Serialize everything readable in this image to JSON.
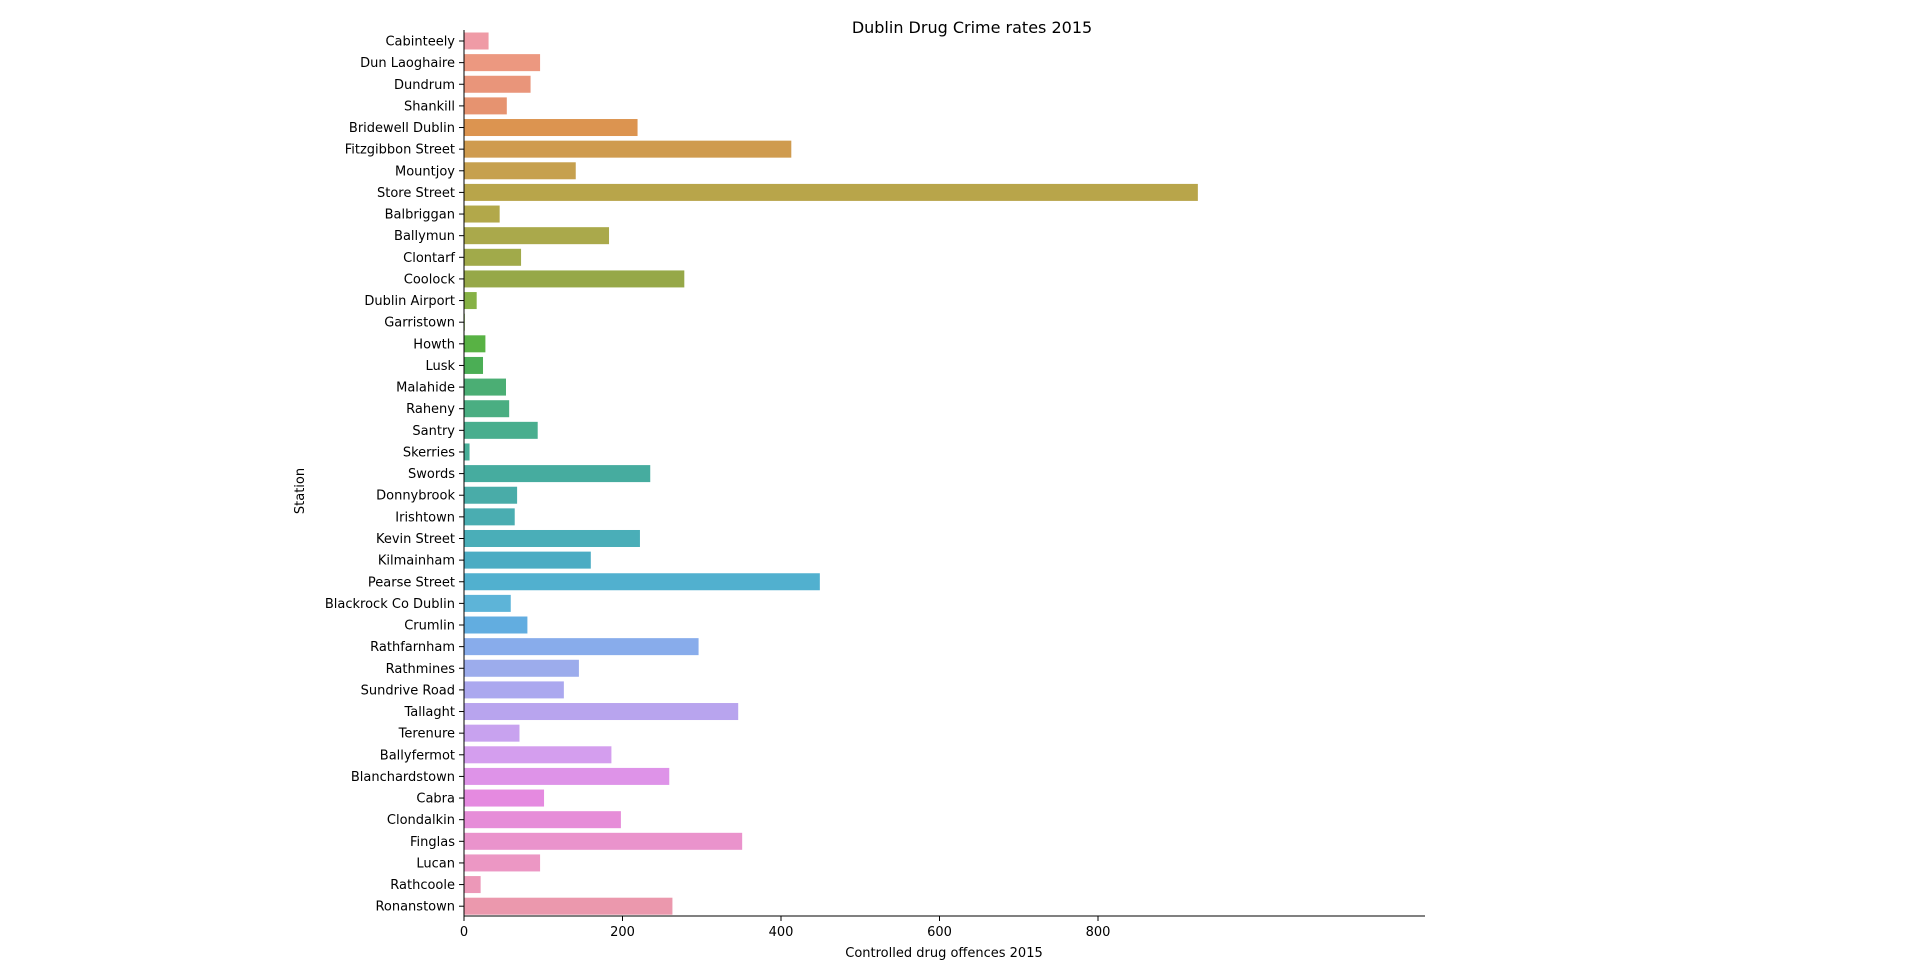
{
  "chart_data": {
    "type": "bar",
    "orientation": "horizontal",
    "title": "Dublin Drug Crime rates 2015",
    "xlabel": "Controlled drug offences 2015",
    "ylabel": "Station",
    "xlim": [
      0,
      970
    ],
    "xticks": [
      0,
      200,
      400,
      600,
      800
    ],
    "categories": [
      "Cabinteely",
      "Dun Laoghaire",
      "Dundrum",
      "Shankill",
      "Bridewell Dublin",
      "Fitzgibbon Street",
      "Mountjoy",
      "Store Street",
      "Balbriggan",
      "Ballymun",
      "Clontarf",
      "Coolock",
      "Dublin Airport",
      "Garristown",
      "Howth",
      "Lusk",
      "Malahide",
      "Raheny",
      "Santry",
      "Skerries",
      "Swords",
      "Donnybrook",
      "Irishtown",
      "Kevin Street",
      "Kilmainham",
      "Pearse Street",
      "Blackrock Co Dublin",
      "Crumlin",
      "Rathfarnham",
      "Rathmines",
      "Sundrive Road",
      "Tallaght",
      "Terenure",
      "Ballyfermot",
      "Blanchardstown",
      "Cabra",
      "Clondalkin",
      "Finglas",
      "Lucan",
      "Rathcoole",
      "Ronanstown"
    ],
    "values": [
      31,
      96,
      84,
      54,
      219,
      413,
      141,
      926,
      45,
      183,
      72,
      278,
      16,
      1,
      27,
      24,
      53,
      57,
      93,
      7,
      235,
      67,
      64,
      222,
      160,
      449,
      59,
      80,
      296,
      145,
      126,
      346,
      70,
      186,
      259,
      101,
      198,
      351,
      96,
      21,
      263
    ],
    "colors": [
      "#ef9ba6",
      "#ec9880",
      "#e9957a",
      "#e69370",
      "#dc9450",
      "#cf9b4e",
      "#c6a04e",
      "#b8a54a",
      "#b2a84a",
      "#aaa94b",
      "#a1aa4a",
      "#96a848",
      "#86b145",
      "#7ab23e",
      "#58b244",
      "#4bae55",
      "#4bae74",
      "#4aae82",
      "#49ae8e",
      "#47ae98",
      "#46ac9f",
      "#49aca8",
      "#4aadb1",
      "#4aaeb8",
      "#4bacc3",
      "#51b0cf",
      "#5db4d8",
      "#62ade0",
      "#88aceb",
      "#9cacec",
      "#aba8ef",
      "#b8a4ee",
      "#c8a2ef",
      "#d49eee",
      "#de93e8",
      "#e58ae0",
      "#e68dd8",
      "#ea93cc",
      "#ec97c4",
      "#ec98b8",
      "#eb98ad"
    ]
  }
}
